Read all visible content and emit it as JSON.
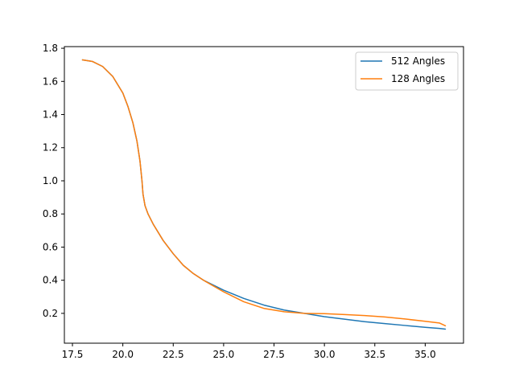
{
  "chart_data": {
    "type": "line",
    "title": "",
    "xlabel": "",
    "ylabel": "",
    "xlim": [
      17.1,
      36.9
    ],
    "ylim": [
      0.02,
      1.81
    ],
    "xticks": [
      17.5,
      20.0,
      22.5,
      25.0,
      27.5,
      30.0,
      32.5,
      35.0
    ],
    "xtick_labels": [
      "17.5",
      "20.0",
      "22.5",
      "25.0",
      "27.5",
      "30.0",
      "32.5",
      "35.0"
    ],
    "yticks": [
      0.2,
      0.4,
      0.6,
      0.8,
      1.0,
      1.2,
      1.4,
      1.6,
      1.8
    ],
    "ytick_labels": [
      "0.2",
      "0.4",
      "0.6",
      "0.8",
      "1.0",
      "1.2",
      "1.4",
      "1.6",
      "1.8"
    ],
    "grid": false,
    "legend": "top-right",
    "series": [
      {
        "name": "512 Angles",
        "color": "#1f77b4",
        "x": [
          18.0,
          18.5,
          19.0,
          19.5,
          20.0,
          20.25,
          20.5,
          20.7,
          20.85,
          20.95,
          21.0,
          21.1,
          21.25,
          21.5,
          22.0,
          22.5,
          23.0,
          23.5,
          24.0,
          25.0,
          26.0,
          27.0,
          28.0,
          29.0,
          30.0,
          31.0,
          32.0,
          33.0,
          34.0,
          35.0,
          35.7,
          36.0
        ],
        "y": [
          1.73,
          1.72,
          1.69,
          1.63,
          1.53,
          1.45,
          1.35,
          1.24,
          1.12,
          1.0,
          0.92,
          0.85,
          0.8,
          0.74,
          0.64,
          0.56,
          0.49,
          0.44,
          0.4,
          0.34,
          0.29,
          0.25,
          0.22,
          0.2,
          0.18,
          0.165,
          0.15,
          0.138,
          0.127,
          0.116,
          0.109,
          0.105
        ]
      },
      {
        "name": "128 Angles",
        "color": "#ff7f0e",
        "x": [
          18.0,
          18.5,
          19.0,
          19.5,
          20.0,
          20.25,
          20.5,
          20.7,
          20.85,
          20.95,
          21.0,
          21.1,
          21.25,
          21.5,
          22.0,
          22.5,
          23.0,
          23.5,
          24.0,
          25.0,
          26.0,
          27.0,
          28.0,
          29.0,
          30.0,
          31.0,
          32.0,
          33.0,
          34.0,
          35.0,
          35.7,
          36.0
        ],
        "y": [
          1.73,
          1.72,
          1.69,
          1.63,
          1.53,
          1.45,
          1.35,
          1.24,
          1.12,
          1.0,
          0.92,
          0.85,
          0.8,
          0.74,
          0.64,
          0.56,
          0.49,
          0.44,
          0.4,
          0.33,
          0.27,
          0.23,
          0.21,
          0.2,
          0.198,
          0.193,
          0.187,
          0.178,
          0.166,
          0.152,
          0.142,
          0.125
        ]
      }
    ]
  }
}
